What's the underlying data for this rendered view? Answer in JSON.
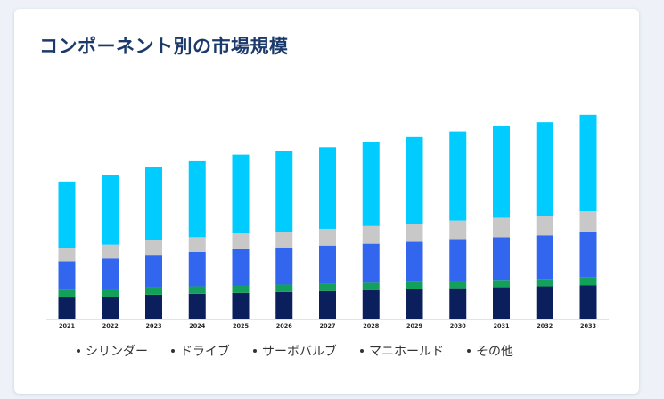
{
  "header": {
    "title": "コンポーネント別の市場規模"
  },
  "legend": {
    "items": [
      {
        "label": "シリンダー"
      },
      {
        "label": "ドライブ"
      },
      {
        "label": "サーボバルブ"
      },
      {
        "label": "マニホールド"
      },
      {
        "label": "その他"
      }
    ]
  },
  "chart_data": {
    "type": "bar",
    "stacked": true,
    "categories": [
      "2021",
      "2022",
      "2023",
      "2024",
      "2025",
      "2026",
      "2027",
      "2028",
      "2029",
      "2030",
      "2031",
      "2032",
      "2033"
    ],
    "series": [
      {
        "name": "シリンダー",
        "color": "#0a1f5c",
        "values": [
          23,
          24,
          26,
          27,
          28,
          29,
          30,
          31,
          32,
          33,
          34,
          35,
          36
        ]
      },
      {
        "name": "ドライブ",
        "color": "#12a05a",
        "values": [
          8,
          8,
          8,
          8,
          8,
          8,
          8,
          8,
          8,
          8,
          8,
          8,
          9
        ]
      },
      {
        "name": "サーボバルブ",
        "color": "#3366ee",
        "values": [
          31,
          33,
          35,
          37,
          39,
          40,
          41,
          42,
          43,
          45,
          46,
          47,
          49
        ]
      },
      {
        "name": "マニホールド",
        "color": "#c8c8c8",
        "values": [
          14,
          15,
          16,
          16,
          17,
          17,
          18,
          19,
          19,
          20,
          21,
          21,
          22
        ]
      },
      {
        "name": "その他",
        "color": "#00ccff",
        "values": [
          72,
          75,
          79,
          82,
          85,
          87,
          88,
          91,
          94,
          96,
          99,
          101,
          104
        ]
      }
    ],
    "ylim": [
      0,
      240
    ],
    "grid": false,
    "legend_position": "bottom"
  }
}
